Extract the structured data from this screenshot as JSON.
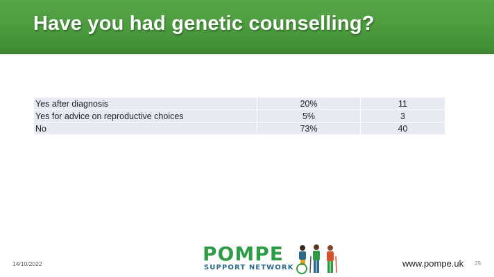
{
  "slide": {
    "title": "Have you had genetic counselling?",
    "date": "14/10/2022",
    "url": "www.pompe.uk",
    "page_number": "25"
  },
  "logo": {
    "wordmark": "POMPE",
    "subtitle": "SUPPORT NETWORK"
  },
  "colors": {
    "header_green": "#4a9a3d",
    "table_cell": "#e8eaf3",
    "logo_green": "#2e9b46",
    "logo_blue": "#2b6a8a"
  },
  "table": {
    "rows": [
      {
        "label": "Yes after diagnosis",
        "percent": "20%",
        "count": "11"
      },
      {
        "label": "Yes for advice on reproductive choices",
        "percent": "5%",
        "count": "3"
      },
      {
        "label": "No",
        "percent": "73%",
        "count": "40"
      }
    ]
  }
}
